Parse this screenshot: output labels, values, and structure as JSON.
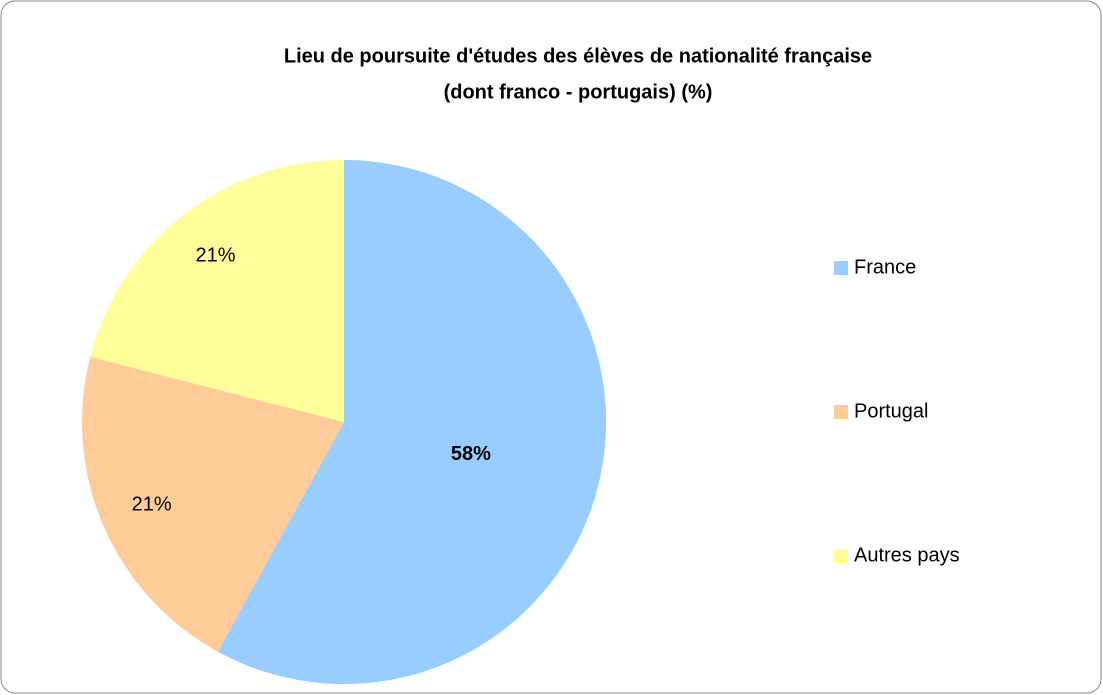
{
  "chart_data": {
    "type": "pie",
    "title": [
      "Lieu de poursuite d'études des élèves de nationalité française",
      "(dont franco - portugais) (%)"
    ],
    "categories": [
      "France",
      "Portugal",
      "Autres pays"
    ],
    "values": [
      58,
      21,
      21
    ],
    "value_labels": [
      "58%",
      "21%",
      "21%"
    ],
    "colors": [
      "#99ccff",
      "#ffcc99",
      "#ffff99"
    ],
    "legend": "right"
  }
}
